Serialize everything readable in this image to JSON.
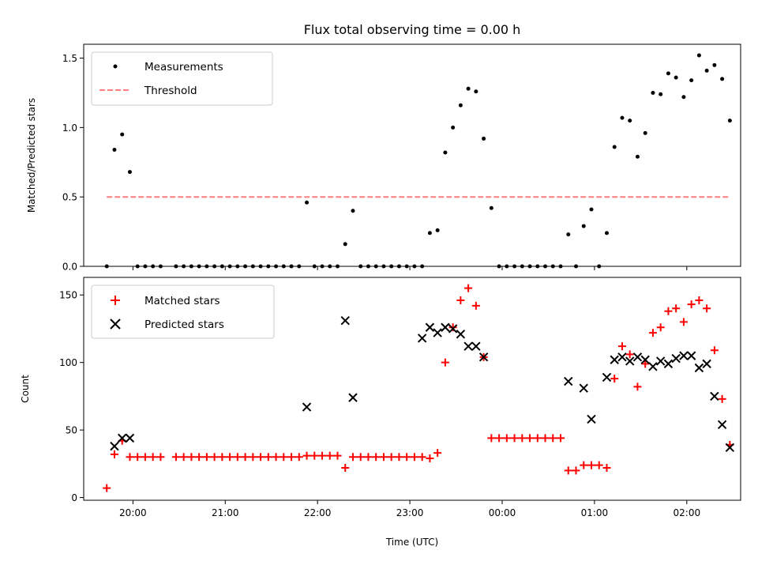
{
  "chart_data": [
    {
      "type": "scatter",
      "title": "Flux total observing time = 0.00 h",
      "xlabel": "",
      "ylabel": "Matched/Predicted stars",
      "xlim": [
        "19:28",
        "02:35"
      ],
      "ylim": [
        0,
        1.6
      ],
      "yticks": [
        0.0,
        0.5,
        1.0,
        1.5
      ],
      "ytick_labels": [
        "0.0",
        "0.5",
        "1.0",
        "1.5"
      ],
      "xticks": [
        "20:00",
        "21:00",
        "22:00",
        "23:00",
        "00:00",
        "01:00",
        "02:00"
      ],
      "grid": false,
      "legend": "top-left",
      "series": [
        {
          "name": "Measurements",
          "marker": "dot",
          "color": "#000000",
          "points": [
            [
              "19:43",
              0
            ],
            [
              "19:48",
              0.84
            ],
            [
              "19:53",
              0.95
            ],
            [
              "19:58",
              0.68
            ],
            [
              "20:03",
              0
            ],
            [
              "20:08",
              0
            ],
            [
              "20:13",
              0
            ],
            [
              "20:18",
              0
            ],
            [
              "20:28",
              0
            ],
            [
              "20:33",
              0
            ],
            [
              "20:38",
              0
            ],
            [
              "20:43",
              0
            ],
            [
              "20:48",
              0
            ],
            [
              "20:53",
              0
            ],
            [
              "20:58",
              0
            ],
            [
              "21:03",
              0
            ],
            [
              "21:08",
              0
            ],
            [
              "21:13",
              0
            ],
            [
              "21:18",
              0
            ],
            [
              "21:23",
              0
            ],
            [
              "21:28",
              0
            ],
            [
              "21:33",
              0
            ],
            [
              "21:38",
              0
            ],
            [
              "21:43",
              0
            ],
            [
              "21:48",
              0
            ],
            [
              "21:53",
              0.46
            ],
            [
              "21:58",
              0
            ],
            [
              "22:03",
              0
            ],
            [
              "22:08",
              0
            ],
            [
              "22:13",
              0
            ],
            [
              "22:18",
              0.16
            ],
            [
              "22:23",
              0.4
            ],
            [
              "22:28",
              0
            ],
            [
              "22:33",
              0
            ],
            [
              "22:38",
              0
            ],
            [
              "22:43",
              0
            ],
            [
              "22:48",
              0
            ],
            [
              "22:53",
              0
            ],
            [
              "22:58",
              0
            ],
            [
              "23:03",
              0
            ],
            [
              "23:08",
              0
            ],
            [
              "23:13",
              0.24
            ],
            [
              "23:18",
              0.26
            ],
            [
              "23:23",
              0.82
            ],
            [
              "23:28",
              1.0
            ],
            [
              "23:33",
              1.16
            ],
            [
              "23:38",
              1.28
            ],
            [
              "23:43",
              1.26
            ],
            [
              "23:48",
              0.92
            ],
            [
              "23:53",
              0.42
            ],
            [
              "23:58",
              0
            ],
            [
              "00:03",
              0
            ],
            [
              "00:08",
              0
            ],
            [
              "00:13",
              0
            ],
            [
              "00:18",
              0
            ],
            [
              "00:23",
              0
            ],
            [
              "00:28",
              0
            ],
            [
              "00:33",
              0
            ],
            [
              "00:38",
              0
            ],
            [
              "00:43",
              0.23
            ],
            [
              "00:48",
              0
            ],
            [
              "00:53",
              0.29
            ],
            [
              "00:58",
              0.41
            ],
            [
              "01:03",
              0
            ],
            [
              "01:08",
              0.24
            ],
            [
              "01:13",
              0.86
            ],
            [
              "01:18",
              1.07
            ],
            [
              "01:23",
              1.05
            ],
            [
              "01:28",
              0.79
            ],
            [
              "01:33",
              0.96
            ],
            [
              "01:38",
              1.25
            ],
            [
              "01:43",
              1.24
            ],
            [
              "01:48",
              1.39
            ],
            [
              "01:53",
              1.36
            ],
            [
              "01:58",
              1.22
            ],
            [
              "02:03",
              1.34
            ],
            [
              "02:08",
              1.52
            ],
            [
              "02:13",
              1.41
            ],
            [
              "02:18",
              1.45
            ],
            [
              "02:23",
              1.35
            ],
            [
              "02:28",
              1.05
            ]
          ]
        },
        {
          "name": "Threshold",
          "line": "dashed",
          "color": "#ff7f7f",
          "points": [
            [
              "19:43",
              0.5
            ],
            [
              "02:28",
              0.5
            ]
          ]
        }
      ]
    },
    {
      "type": "scatter",
      "title": "",
      "xlabel": "Time (UTC)",
      "ylabel": "Count",
      "xlim": [
        "19:28",
        "02:35"
      ],
      "ylim": [
        -2,
        163
      ],
      "yticks": [
        0,
        50,
        100,
        150
      ],
      "ytick_labels": [
        "0",
        "50",
        "100",
        "150"
      ],
      "xticks": [
        "20:00",
        "21:00",
        "22:00",
        "23:00",
        "00:00",
        "01:00",
        "02:00"
      ],
      "grid": false,
      "legend": "top-left",
      "series": [
        {
          "name": "Matched stars",
          "marker": "plus",
          "color": "#ff0000",
          "points": [
            [
              "19:43",
              7
            ],
            [
              "19:48",
              32
            ],
            [
              "19:53",
              42
            ],
            [
              "19:58",
              30
            ],
            [
              "20:03",
              30
            ],
            [
              "20:08",
              30
            ],
            [
              "20:13",
              30
            ],
            [
              "20:18",
              30
            ],
            [
              "20:28",
              30
            ],
            [
              "20:33",
              30
            ],
            [
              "20:38",
              30
            ],
            [
              "20:43",
              30
            ],
            [
              "20:48",
              30
            ],
            [
              "20:53",
              30
            ],
            [
              "20:58",
              30
            ],
            [
              "21:03",
              30
            ],
            [
              "21:08",
              30
            ],
            [
              "21:13",
              30
            ],
            [
              "21:18",
              30
            ],
            [
              "21:23",
              30
            ],
            [
              "21:28",
              30
            ],
            [
              "21:33",
              30
            ],
            [
              "21:38",
              30
            ],
            [
              "21:43",
              30
            ],
            [
              "21:48",
              30
            ],
            [
              "21:53",
              31
            ],
            [
              "21:58",
              31
            ],
            [
              "22:03",
              31
            ],
            [
              "22:08",
              31
            ],
            [
              "22:13",
              31
            ],
            [
              "22:18",
              22
            ],
            [
              "22:23",
              30
            ],
            [
              "22:28",
              30
            ],
            [
              "22:33",
              30
            ],
            [
              "22:38",
              30
            ],
            [
              "22:43",
              30
            ],
            [
              "22:48",
              30
            ],
            [
              "22:53",
              30
            ],
            [
              "22:58",
              30
            ],
            [
              "23:03",
              30
            ],
            [
              "23:08",
              30
            ],
            [
              "23:13",
              29
            ],
            [
              "23:18",
              33
            ],
            [
              "23:23",
              100
            ],
            [
              "23:28",
              126
            ],
            [
              "23:33",
              146
            ],
            [
              "23:38",
              155
            ],
            [
              "23:43",
              142
            ],
            [
              "23:48",
              104
            ],
            [
              "23:53",
              44
            ],
            [
              "23:58",
              44
            ],
            [
              "00:03",
              44
            ],
            [
              "00:08",
              44
            ],
            [
              "00:13",
              44
            ],
            [
              "00:18",
              44
            ],
            [
              "00:23",
              44
            ],
            [
              "00:28",
              44
            ],
            [
              "00:33",
              44
            ],
            [
              "00:38",
              44
            ],
            [
              "00:43",
              20
            ],
            [
              "00:48",
              20
            ],
            [
              "00:53",
              24
            ],
            [
              "00:58",
              24
            ],
            [
              "01:03",
              24
            ],
            [
              "01:08",
              22
            ],
            [
              "01:13",
              88
            ],
            [
              "01:18",
              112
            ],
            [
              "01:23",
              106
            ],
            [
              "01:28",
              82
            ],
            [
              "01:33",
              99
            ],
            [
              "01:38",
              122
            ],
            [
              "01:43",
              126
            ],
            [
              "01:48",
              138
            ],
            [
              "01:53",
              140
            ],
            [
              "01:58",
              130
            ],
            [
              "02:03",
              143
            ],
            [
              "02:08",
              146
            ],
            [
              "02:13",
              140
            ],
            [
              "02:18",
              109
            ],
            [
              "02:23",
              73
            ],
            [
              "02:28",
              39
            ]
          ]
        },
        {
          "name": "Predicted stars",
          "marker": "x",
          "color": "#000000",
          "points": [
            [
              "19:48",
              38
            ],
            [
              "19:53",
              44
            ],
            [
              "19:58",
              44
            ],
            [
              "21:53",
              67
            ],
            [
              "22:18",
              131
            ],
            [
              "22:23",
              74
            ],
            [
              "23:08",
              118
            ],
            [
              "23:13",
              126
            ],
            [
              "23:18",
              122
            ],
            [
              "23:23",
              126
            ],
            [
              "23:28",
              125
            ],
            [
              "23:33",
              121
            ],
            [
              "23:38",
              112
            ],
            [
              "23:43",
              112
            ],
            [
              "23:48",
              104
            ],
            [
              "00:43",
              86
            ],
            [
              "00:53",
              81
            ],
            [
              "00:58",
              58
            ],
            [
              "01:08",
              89
            ],
            [
              "01:13",
              102
            ],
            [
              "01:18",
              104
            ],
            [
              "01:23",
              101
            ],
            [
              "01:28",
              104
            ],
            [
              "01:33",
              102
            ],
            [
              "01:38",
              97
            ],
            [
              "01:43",
              101
            ],
            [
              "01:48",
              99
            ],
            [
              "01:53",
              103
            ],
            [
              "01:58",
              105
            ],
            [
              "02:03",
              105
            ],
            [
              "02:08",
              96
            ],
            [
              "02:13",
              99
            ],
            [
              "02:18",
              75
            ],
            [
              "02:23",
              54
            ],
            [
              "02:28",
              37
            ]
          ]
        }
      ]
    }
  ]
}
